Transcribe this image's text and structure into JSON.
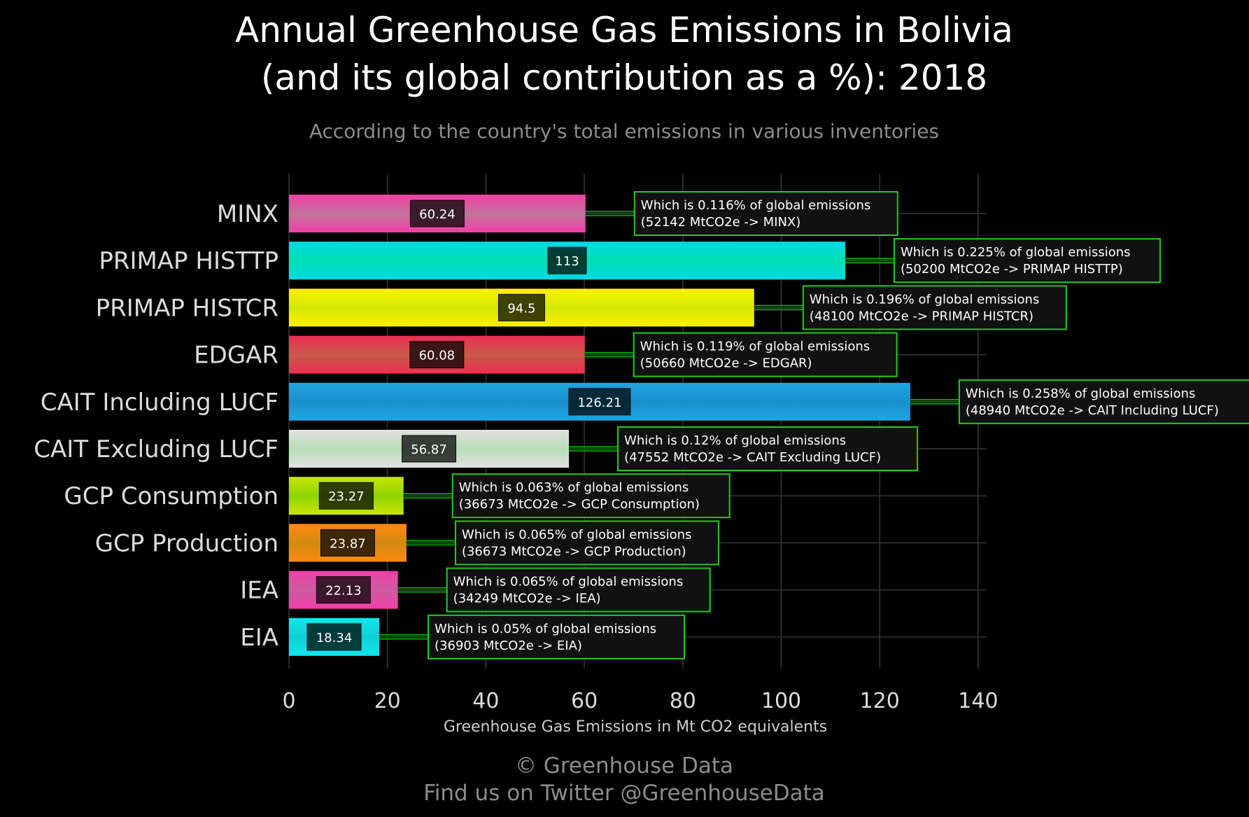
{
  "title_line1": "Annual Greenhouse Gas Emissions in Bolivia",
  "title_line2": "(and its global contribution as a %): 2018",
  "subtitle": "According to the country's total emissions in various inventories",
  "footer_line1": "© Greenhouse Data",
  "footer_line2": "Find us on Twitter @GreenhouseData",
  "chart_data": {
    "type": "bar",
    "orientation": "horizontal",
    "title": "Annual Greenhouse Gas Emissions in Bolivia (and its global contribution as a %): 2018",
    "subtitle": "According to the country's total emissions in various inventories",
    "xlabel": "Greenhouse Gas Emissions in Mt CO2 equivalents",
    "ylabel": "",
    "xlim": [
      0,
      140
    ],
    "xticks": [
      0,
      20,
      40,
      60,
      80,
      100,
      120,
      140
    ],
    "grid": true,
    "categories": [
      "MINX",
      "PRIMAP HISTTP",
      "PRIMAP HISTCR",
      "EDGAR",
      "CAIT Including LUCF",
      "CAIT Excluding LUCF",
      "GCP Consumption",
      "GCP Production",
      "IEA",
      "EIA"
    ],
    "values": [
      60.24,
      113,
      94.5,
      60.08,
      126.21,
      56.87,
      23.27,
      23.87,
      22.13,
      18.34
    ],
    "value_labels": [
      "60.24",
      "113",
      "94.5",
      "60.08",
      "126.21",
      "56.87",
      "23.27",
      "23.87",
      "22.13",
      "18.34"
    ],
    "annotations": [
      {
        "line1": "Which is 0.116% of global emissions",
        "line2": "(52142 MtCO2e -> MINX)"
      },
      {
        "line1": "Which is 0.225% of global emissions",
        "line2": "(50200 MtCO2e -> PRIMAP HISTTP)"
      },
      {
        "line1": "Which is 0.196% of global emissions",
        "line2": "(48100 MtCO2e -> PRIMAP HISTCR)"
      },
      {
        "line1": "Which is 0.119% of global emissions",
        "line2": "(50660 MtCO2e -> EDGAR)"
      },
      {
        "line1": "Which is 0.258% of global emissions",
        "line2": "(48940 MtCO2e -> CAIT Including LUCF)"
      },
      {
        "line1": "Which is 0.12% of global emissions",
        "line2": "(47552 MtCO2e -> CAIT Excluding LUCF)"
      },
      {
        "line1": "Which is 0.063% of global emissions",
        "line2": "(36673 MtCO2e -> GCP Consumption)"
      },
      {
        "line1": "Which is 0.065% of global emissions",
        "line2": "(36673 MtCO2e -> GCP Production)"
      },
      {
        "line1": "Which is 0.065% of global emissions",
        "line2": "(34249 MtCO2e -> IEA)"
      },
      {
        "line1": "Which is 0.05% of global emissions",
        "line2": "(36903 MtCO2e -> EIA)"
      }
    ],
    "bar_colors": [
      [
        "#f23ea8",
        "#c0749a"
      ],
      [
        "#00d9e8",
        "#00e0b0"
      ],
      [
        "#fff000",
        "#d2ea00"
      ],
      [
        "#ee2d52",
        "#c85a48"
      ],
      [
        "#1ea6e4",
        "#1a8fcc"
      ],
      [
        "#e3e3e3",
        "#b6dcb6"
      ],
      [
        "#c8e600",
        "#8fd400"
      ],
      [
        "#ff8a10",
        "#d28a10"
      ],
      [
        "#f23ea8",
        "#cc5ca0"
      ],
      [
        "#10e6ee",
        "#10cfd6"
      ]
    ],
    "annotation_border_color": "#22cc22",
    "connector_color": "#00dd00"
  }
}
